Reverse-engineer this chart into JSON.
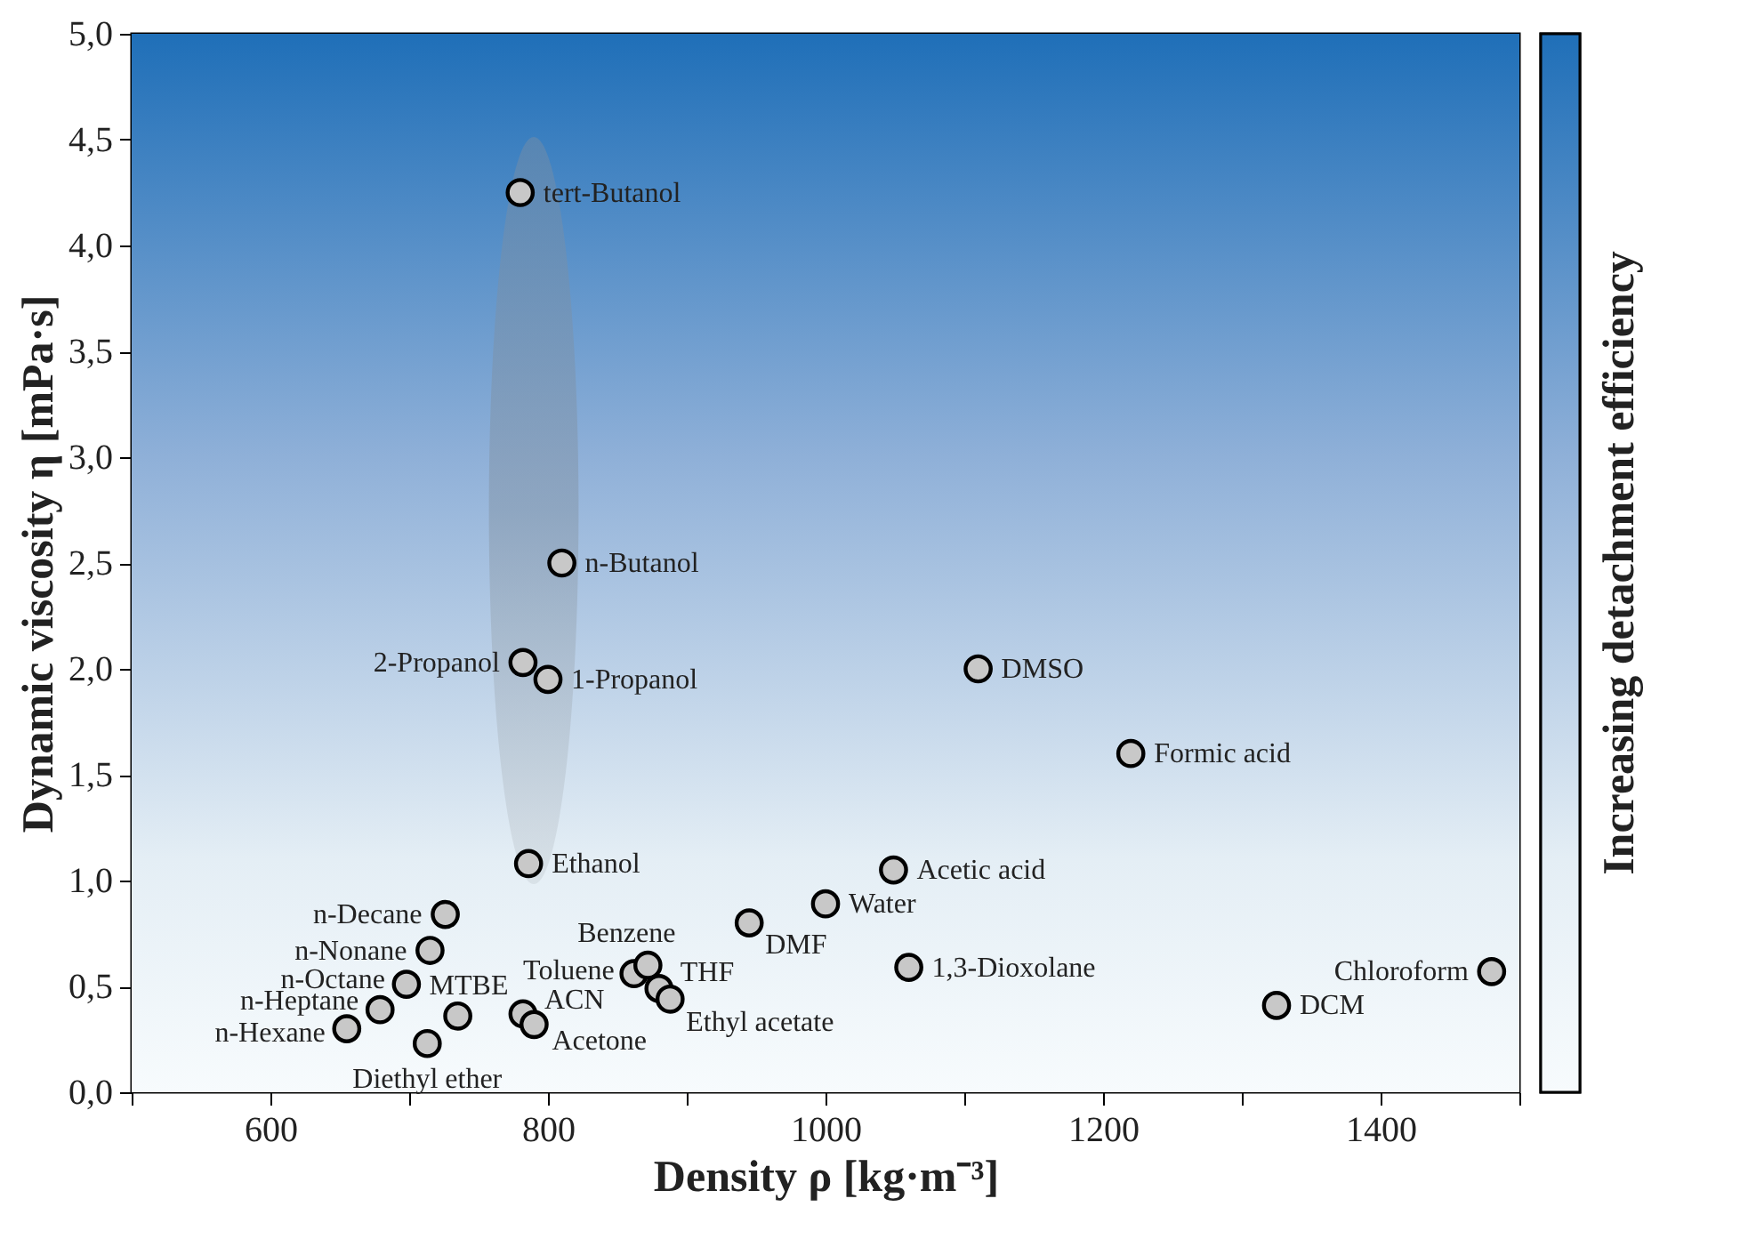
{
  "chart_data": {
    "type": "scatter",
    "xlabel": "Density ρ [kg·m⁻³]",
    "ylabel": "Dynamic viscosity η [mPa·s]",
    "clabel": "Increasing detachment efficiency",
    "x": [
      780,
      810,
      782,
      800,
      1110,
      1220,
      786,
      1049,
      1000,
      945,
      1060,
      1480,
      1325,
      726,
      715,
      698,
      679,
      655,
      735,
      713,
      782,
      790,
      862,
      872,
      880,
      888
    ],
    "values": [
      4.25,
      2.5,
      2.03,
      1.95,
      2.0,
      1.6,
      1.08,
      1.05,
      0.89,
      0.8,
      0.59,
      0.57,
      0.41,
      0.84,
      0.67,
      0.51,
      0.39,
      0.3,
      0.36,
      0.23,
      0.37,
      0.32,
      0.56,
      0.6,
      0.49,
      0.44
    ],
    "color": "#c8c8c8",
    "marker": "circle",
    "grid": false,
    "xlim": [
      500,
      1500
    ],
    "xticks": [
      {
        "value": 500,
        "label": null
      },
      600,
      {
        "value": 700,
        "label": null
      },
      800,
      {
        "value": 900,
        "label": null
      },
      1000,
      {
        "value": 1100,
        "label": null
      },
      1200,
      {
        "value": 1300,
        "label": null
      },
      1400,
      {
        "value": 1500,
        "label": null
      }
    ],
    "ylim": [
      0,
      5
    ],
    "yticks": [
      {
        "value": 0,
        "label": "0,0"
      },
      {
        "value": 0.5,
        "label": "0,5"
      },
      {
        "value": 1,
        "label": "1,0"
      },
      {
        "value": 1.5,
        "label": "1,5"
      },
      {
        "value": 2,
        "label": "2,0"
      },
      {
        "value": 2.5,
        "label": "2,5"
      },
      {
        "value": 3,
        "label": "3,0"
      },
      {
        "value": 3.5,
        "label": "3,5"
      },
      {
        "value": 4,
        "label": "4,0"
      },
      {
        "value": 4.5,
        "label": "4,5"
      },
      {
        "value": 5,
        "label": "5,0"
      }
    ],
    "annotations": [
      {
        "text": "tert-Butanol",
        "x": 780,
        "y": 4.25
      },
      {
        "text": "n-Butanol",
        "x": 810,
        "y": 2.5
      },
      {
        "text": "2-Propanol",
        "x": 782,
        "y": 2.03
      },
      {
        "text": "1-Propanol",
        "x": 800,
        "y": 1.95
      },
      {
        "text": "DMSO",
        "x": 1110,
        "y": 2.0
      },
      {
        "text": "Formic acid",
        "x": 1220,
        "y": 1.6
      },
      {
        "text": "Ethanol",
        "x": 786,
        "y": 1.08
      },
      {
        "text": "Acetic acid",
        "x": 1049,
        "y": 1.05
      },
      {
        "text": "Water",
        "x": 1000,
        "y": 0.89
      },
      {
        "text": "DMF",
        "x": 945,
        "y": 0.8
      },
      {
        "text": "1,3-Dioxolane",
        "x": 1060,
        "y": 0.59
      },
      {
        "text": "Chloroform",
        "x": 1480,
        "y": 0.57
      },
      {
        "text": "DCM",
        "x": 1325,
        "y": 0.41
      },
      {
        "text": "n-Decane",
        "x": 726,
        "y": 0.84
      },
      {
        "text": "n-Nonane",
        "x": 715,
        "y": 0.67
      },
      {
        "text": "n-Octane",
        "x": 698,
        "y": 0.51
      },
      {
        "text": "n-Heptane",
        "x": 679,
        "y": 0.39
      },
      {
        "text": "n-Hexane",
        "x": 655,
        "y": 0.3
      },
      {
        "text": "MTBE",
        "x": 735,
        "y": 0.36
      },
      {
        "text": "Diethyl ether",
        "x": 713,
        "y": 0.23
      },
      {
        "text": "ACN",
        "x": 782,
        "y": 0.37
      },
      {
        "text": "Acetone",
        "x": 790,
        "y": 0.32
      },
      {
        "text": "Toluene",
        "x": 862,
        "y": 0.56
      },
      {
        "text": "Benzene",
        "x": 872,
        "y": 0.6
      },
      {
        "text": "THF",
        "x": 880,
        "y": 0.49
      },
      {
        "text": "Ethyl acetate",
        "x": 888,
        "y": 0.44
      }
    ]
  }
}
